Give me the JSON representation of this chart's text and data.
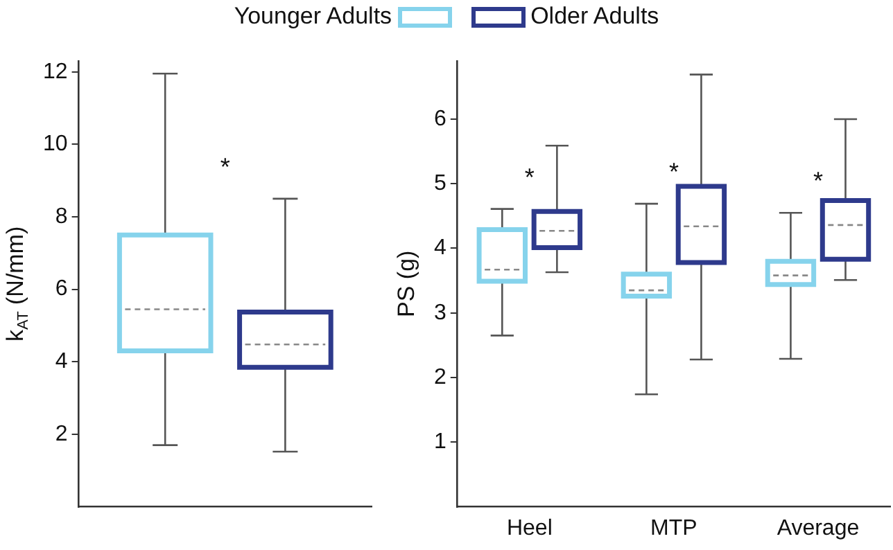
{
  "chart_data": [
    {
      "type": "box",
      "categories": [
        null
      ],
      "ylabel": "k$_{AT}$ (N/mm)",
      "ylim": [
        0,
        12.3
      ],
      "yticks": [
        2,
        4,
        6,
        8,
        10,
        12
      ],
      "legend": "top",
      "series": [
        {
          "name": "Younger Adults",
          "color": "#86d3ec",
          "boxes": [
            {
              "low": 1.7,
              "q1": 4.3,
              "median": 5.45,
              "q3": 7.5,
              "high": 11.95
            }
          ]
        },
        {
          "name": "Older Adults",
          "color": "#2e3a8c",
          "boxes": [
            {
              "low": 1.52,
              "q1": 3.85,
              "median": 4.48,
              "q3": 5.37,
              "high": 8.5
            }
          ]
        }
      ],
      "annotations": [
        "*"
      ]
    },
    {
      "type": "box",
      "categories": [
        "Heel",
        "MTP",
        "Average"
      ],
      "ylabel": "PS (g)",
      "ylim": [
        0,
        6.9
      ],
      "yticks": [
        1,
        2,
        3,
        4,
        5,
        6
      ],
      "series": [
        {
          "color": "#86d3ec",
          "boxes": [
            {
              "low": 2.65,
              "q1": 3.49,
              "median": 3.67,
              "q3": 4.29,
              "high": 4.61
            },
            {
              "low": 1.74,
              "q1": 3.26,
              "median": 3.35,
              "q3": 3.6,
              "high": 4.69
            },
            {
              "low": 2.29,
              "q1": 3.44,
              "median": 3.58,
              "q3": 3.8,
              "high": 4.55
            }
          ]
        },
        {
          "color": "#2e3a8c",
          "boxes": [
            {
              "low": 3.63,
              "q1": 4.01,
              "median": 4.27,
              "q3": 4.57,
              "high": 5.59
            },
            {
              "low": 2.28,
              "q1": 3.78,
              "median": 4.34,
              "q3": 4.96,
              "high": 6.69
            },
            {
              "low": 3.51,
              "q1": 3.83,
              "median": 4.36,
              "q3": 4.74,
              "high": 6.0
            }
          ]
        }
      ],
      "annotations": [
        "*",
        "*",
        "*"
      ]
    }
  ]
}
